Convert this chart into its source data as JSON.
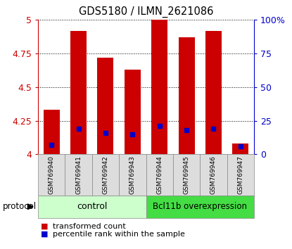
{
  "title": "GDS5180 / ILMN_2621086",
  "samples": [
    "GSM769940",
    "GSM769941",
    "GSM769942",
    "GSM769943",
    "GSM769944",
    "GSM769945",
    "GSM769946",
    "GSM769947"
  ],
  "transformed_counts": [
    4.33,
    4.92,
    4.72,
    4.63,
    5.0,
    4.87,
    4.92,
    4.08
  ],
  "percentile_ranks": [
    7,
    19,
    16,
    15,
    21,
    18,
    19,
    6
  ],
  "ylim_left": [
    4.0,
    5.0
  ],
  "ylim_right": [
    0,
    100
  ],
  "yticks_left": [
    4.0,
    4.25,
    4.5,
    4.75,
    5.0
  ],
  "yticks_right": [
    0,
    25,
    50,
    75,
    100
  ],
  "ytick_labels_left": [
    "4",
    "4.25",
    "4.5",
    "4.75",
    "5"
  ],
  "ytick_labels_right": [
    "0",
    "25",
    "50",
    "75",
    "100%"
  ],
  "bar_color": "#cc0000",
  "marker_color": "#0000cc",
  "bar_width": 0.6,
  "control_label": "control",
  "treatment_label": "Bcl11b overexpression",
  "control_color": "#ccffcc",
  "treatment_color": "#44dd44",
  "protocol_label": "protocol",
  "legend_bar": "transformed count",
  "legend_marker": "percentile rank within the sample",
  "bg_color": "#ffffff",
  "left_axis_color": "#cc0000",
  "right_axis_color": "#0000cc",
  "xtick_bg_color": "#dddddd",
  "xtick_border_color": "#888888"
}
